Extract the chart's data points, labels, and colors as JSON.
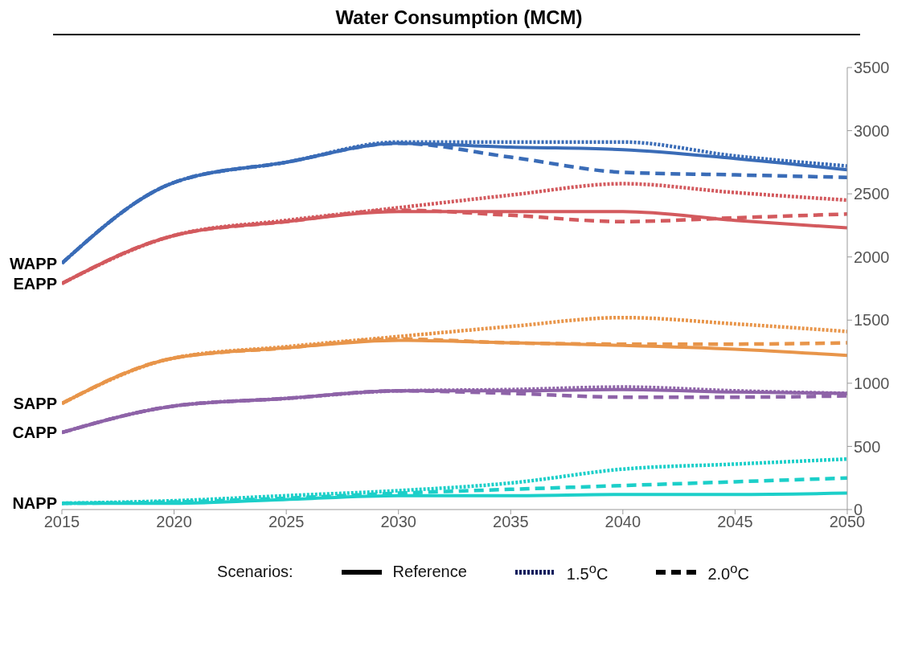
{
  "chart_data": {
    "type": "line",
    "title": "Water Consumption (MCM)",
    "legend_title": "Scenarios:",
    "legend": "bottom",
    "marker": "none",
    "x": [
      2015,
      2020,
      2025,
      2030,
      2035,
      2040,
      2045,
      2050
    ],
    "xlim": [
      2015,
      2050
    ],
    "xticks": [
      2015,
      2020,
      2025,
      2030,
      2035,
      2040,
      2045,
      2050
    ],
    "ylim": [
      0,
      3500
    ],
    "yticks": [
      0,
      500,
      1000,
      1500,
      2000,
      2500,
      3000,
      3500
    ],
    "series": [
      {
        "name": "WAPP",
        "color": "#3a6cb7",
        "line_style": "solid",
        "values": [
          1950,
          2590,
          2750,
          2900,
          2870,
          2850,
          2780,
          2690
        ]
      },
      {
        "color": "#3a6cb7",
        "line_style": "dotted",
        "values": [
          1950,
          2590,
          2750,
          2910,
          2910,
          2910,
          2800,
          2720
        ]
      },
      {
        "color": "#3a6cb7",
        "line_style": "dashed",
        "values": [
          1950,
          2590,
          2750,
          2900,
          2790,
          2670,
          2650,
          2630
        ]
      },
      {
        "name": "EAPP",
        "color": "#d35a5e",
        "line_style": "solid",
        "values": [
          1790,
          2170,
          2280,
          2360,
          2360,
          2360,
          2290,
          2230
        ]
      },
      {
        "color": "#d35a5e",
        "line_style": "dotted",
        "values": [
          1790,
          2170,
          2290,
          2390,
          2490,
          2580,
          2510,
          2450
        ]
      },
      {
        "color": "#d35a5e",
        "line_style": "dashed",
        "values": [
          1790,
          2170,
          2280,
          2370,
          2330,
          2280,
          2310,
          2340
        ]
      },
      {
        "name": "SAPP",
        "color": "#e8954a",
        "line_style": "solid",
        "values": [
          840,
          1200,
          1280,
          1340,
          1320,
          1300,
          1270,
          1220
        ]
      },
      {
        "color": "#e8954a",
        "line_style": "dotted",
        "values": [
          840,
          1200,
          1290,
          1370,
          1450,
          1520,
          1470,
          1410
        ]
      },
      {
        "color": "#e8954a",
        "line_style": "dashed",
        "values": [
          840,
          1200,
          1280,
          1350,
          1320,
          1310,
          1310,
          1320
        ]
      },
      {
        "name": "CAPP",
        "color": "#8e63a8",
        "line_style": "solid",
        "values": [
          610,
          820,
          880,
          940,
          940,
          950,
          930,
          920
        ]
      },
      {
        "color": "#8e63a8",
        "line_style": "dotted",
        "values": [
          610,
          820,
          880,
          940,
          950,
          970,
          940,
          920
        ]
      },
      {
        "color": "#8e63a8",
        "line_style": "dashed",
        "values": [
          610,
          820,
          880,
          940,
          920,
          890,
          890,
          900
        ]
      },
      {
        "name": "NAPP",
        "color": "#1ccfc9",
        "line_style": "solid",
        "values": [
          50,
          50,
          80,
          110,
          110,
          120,
          120,
          130
        ]
      },
      {
        "color": "#1ccfc9",
        "line_style": "dotted",
        "values": [
          50,
          70,
          110,
          150,
          210,
          320,
          360,
          400
        ]
      },
      {
        "color": "#1ccfc9",
        "line_style": "dashed",
        "values": [
          50,
          60,
          90,
          130,
          160,
          190,
          220,
          250
        ]
      },
      {
        "name": "Reference",
        "color": "#000000",
        "line_style": "solid",
        "values": [
          null,
          null,
          null,
          null,
          null,
          null,
          null,
          null
        ]
      },
      {
        "name": "1.5$^{o}$C",
        "color": "#0a1a5c",
        "line_style": "dotted",
        "values": [
          null,
          null,
          null,
          null,
          null,
          null,
          null,
          null
        ]
      },
      {
        "name": "2.0$^{o}$C",
        "color": "#000000",
        "line_style": "dashed",
        "values": [
          null,
          null,
          null,
          null,
          null,
          null,
          null,
          null
        ]
      }
    ]
  }
}
